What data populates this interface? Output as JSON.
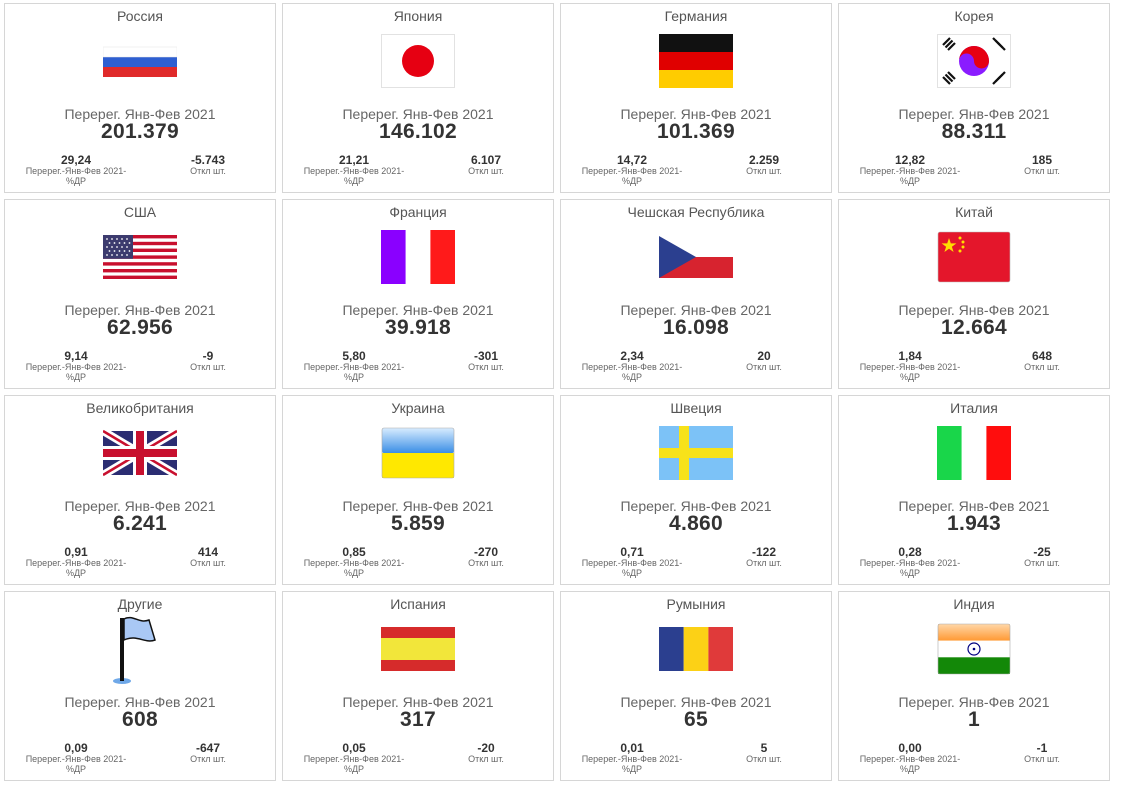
{
  "kpi_label": "Перерег. Янв-Фев 2021",
  "share_label": "Перерег.-Янв-Фев 2021-%ДР",
  "delta_label": "Откл шт.",
  "tiles": [
    {
      "country": "Россия",
      "flag": "russia-flag",
      "value": "201.379",
      "share": "29,24",
      "delta": "-5.743"
    },
    {
      "country": "Япония",
      "flag": "japan-flag",
      "value": "146.102",
      "share": "21,21",
      "delta": "6.107"
    },
    {
      "country": "Германия",
      "flag": "germany-flag",
      "value": "101.369",
      "share": "14,72",
      "delta": "2.259"
    },
    {
      "country": "Корея",
      "flag": "korea-flag",
      "value": "88.311",
      "share": "12,82",
      "delta": "185"
    },
    {
      "country": "США",
      "flag": "usa-flag",
      "value": "62.956",
      "share": "9,14",
      "delta": "-9"
    },
    {
      "country": "Франция",
      "flag": "france-flag",
      "value": "39.918",
      "share": "5,80",
      "delta": "-301"
    },
    {
      "country": "Чешская Республика",
      "flag": "czech-flag",
      "value": "16.098",
      "share": "2,34",
      "delta": "20"
    },
    {
      "country": "Китай",
      "flag": "china-flag",
      "value": "12.664",
      "share": "1,84",
      "delta": "648"
    },
    {
      "country": "Великобритания",
      "flag": "uk-flag",
      "value": "6.241",
      "share": "0,91",
      "delta": "414"
    },
    {
      "country": "Украина",
      "flag": "ukraine-flag",
      "value": "5.859",
      "share": "0,85",
      "delta": "-270"
    },
    {
      "country": "Швеция",
      "flag": "sweden-flag",
      "value": "4.860",
      "share": "0,71",
      "delta": "-122"
    },
    {
      "country": "Италия",
      "flag": "italy-flag",
      "value": "1.943",
      "share": "0,28",
      "delta": "-25"
    },
    {
      "country": "Другие",
      "flag": "generic-flag",
      "value": "608",
      "share": "0,09",
      "delta": "-647"
    },
    {
      "country": "Испания",
      "flag": "spain-flag",
      "value": "317",
      "share": "0,05",
      "delta": "-20"
    },
    {
      "country": "Румыния",
      "flag": "romania-flag",
      "value": "65",
      "share": "0,01",
      "delta": "5"
    },
    {
      "country": "Индия",
      "flag": "india-flag",
      "value": "1",
      "share": "0,00",
      "delta": "-1"
    }
  ]
}
